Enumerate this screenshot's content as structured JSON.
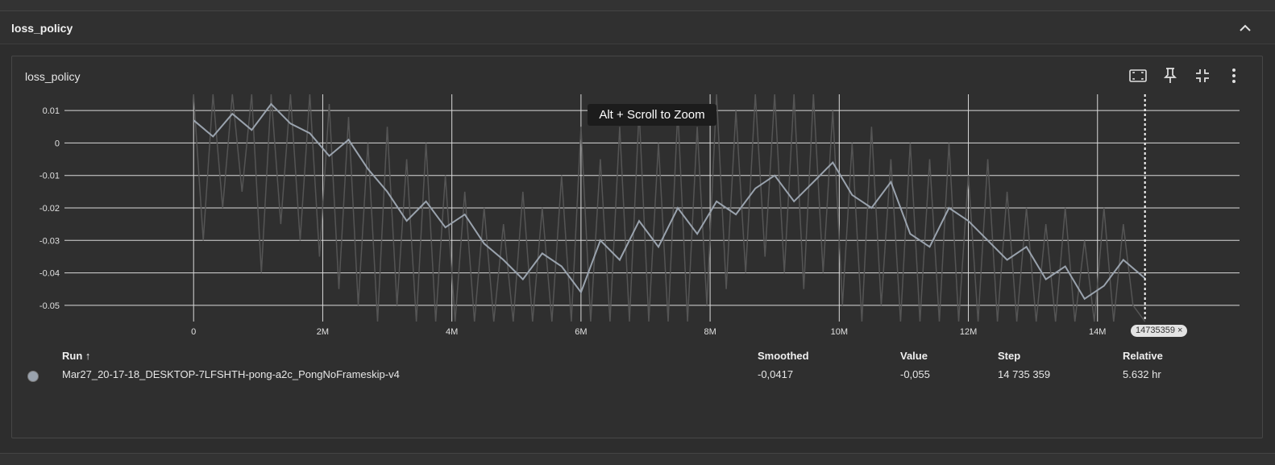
{
  "group": {
    "title": "loss_policy"
  },
  "card": {
    "title": "loss_policy",
    "tooltip": "Alt + Scroll to Zoom",
    "step_badge": "14735359 ×"
  },
  "toolbar": {
    "fit_icon": "fit-domain-icon",
    "pin_icon": "pin-icon",
    "fullscreen_icon": "collapse-fullscreen-icon",
    "more_icon": "more-vert-icon"
  },
  "table": {
    "headers": {
      "run": "Run ↑",
      "smoothed": "Smoothed",
      "value": "Value",
      "step": "Step",
      "relative": "Relative"
    },
    "rows": [
      {
        "run": "Mar27_20-17-18_DESKTOP-7LFSHTH-pong-a2c_PongNoFrameskip-v4",
        "smoothed": "-0,0417",
        "value": "-0,055",
        "step": "14 735 359",
        "relative": "5.632 hr",
        "color": "#9aa3ae"
      }
    ]
  },
  "colors": {
    "background": "#2d2d2d",
    "raw_line": "#555555",
    "smoothed_line": "#9aa3ae",
    "grid": "#d9d9d9"
  },
  "chart_data": {
    "type": "line",
    "ylim": [
      -0.055,
      0.015
    ],
    "xlim": [
      -2000000,
      16200000
    ],
    "x_ticks": [
      0,
      2000000,
      4000000,
      6000000,
      8000000,
      10000000,
      12000000,
      14000000
    ],
    "x_tick_labels": [
      "0",
      "2M",
      "4M",
      "6M",
      "8M",
      "10M",
      "12M",
      "14M"
    ],
    "y_ticks": [
      0.01,
      0,
      -0.01,
      -0.02,
      -0.03,
      -0.04,
      -0.05
    ],
    "y_tick_labels": [
      "0.01",
      "0",
      "-0.01",
      "-0.02",
      "-0.03",
      "-0.04",
      "-0.05"
    ],
    "cursor_step": 14735359,
    "series": [
      {
        "name": "Mar27_20-17-18_DESKTOP-7LFSHTH-pong-a2c_PongNoFrameskip-v4",
        "kind": "smoothed",
        "x": [
          0,
          300000,
          600000,
          900000,
          1200000,
          1500000,
          1800000,
          2100000,
          2400000,
          2700000,
          3000000,
          3300000,
          3600000,
          3900000,
          4200000,
          4500000,
          4800000,
          5100000,
          5400000,
          5700000,
          6000000,
          6300000,
          6600000,
          6900000,
          7200000,
          7500000,
          7800000,
          8100000,
          8400000,
          8700000,
          9000000,
          9300000,
          9600000,
          9900000,
          10200000,
          10500000,
          10800000,
          11100000,
          11400000,
          11700000,
          12000000,
          12300000,
          12600000,
          12900000,
          13200000,
          13500000,
          13800000,
          14100000,
          14400000,
          14735359
        ],
        "y": [
          0.007,
          0.002,
          0.009,
          0.004,
          0.012,
          0.006,
          0.003,
          -0.004,
          0.001,
          -0.008,
          -0.015,
          -0.024,
          -0.018,
          -0.026,
          -0.022,
          -0.031,
          -0.036,
          -0.042,
          -0.034,
          -0.038,
          -0.046,
          -0.03,
          -0.036,
          -0.024,
          -0.032,
          -0.02,
          -0.028,
          -0.018,
          -0.022,
          -0.014,
          -0.01,
          -0.018,
          -0.012,
          -0.006,
          -0.016,
          -0.02,
          -0.012,
          -0.028,
          -0.032,
          -0.02,
          -0.024,
          -0.03,
          -0.036,
          -0.032,
          -0.042,
          -0.038,
          -0.048,
          -0.044,
          -0.036,
          -0.0417
        ]
      },
      {
        "name": "Mar27_20-17-18_DESKTOP-7LFSHTH-pong-a2c_PongNoFrameskip-v4",
        "kind": "raw",
        "x": [
          0,
          150000,
          300000,
          450000,
          600000,
          750000,
          900000,
          1050000,
          1200000,
          1350000,
          1500000,
          1650000,
          1800000,
          1950000,
          2100000,
          2250000,
          2400000,
          2550000,
          2700000,
          2850000,
          3000000,
          3150000,
          3300000,
          3450000,
          3600000,
          3750000,
          3900000,
          4050000,
          4200000,
          4350000,
          4500000,
          4650000,
          4800000,
          4950000,
          5100000,
          5250000,
          5400000,
          5550000,
          5700000,
          5850000,
          6000000,
          6150000,
          6300000,
          6450000,
          6600000,
          6750000,
          6900000,
          7050000,
          7200000,
          7350000,
          7500000,
          7650000,
          7800000,
          7950000,
          8100000,
          8250000,
          8400000,
          8550000,
          8700000,
          8850000,
          9000000,
          9150000,
          9300000,
          9450000,
          9600000,
          9750000,
          9900000,
          10050000,
          10200000,
          10350000,
          10500000,
          10650000,
          10800000,
          10950000,
          11100000,
          11250000,
          11400000,
          11550000,
          11700000,
          11850000,
          12000000,
          12150000,
          12300000,
          12450000,
          12600000,
          12750000,
          12900000,
          13050000,
          13200000,
          13350000,
          13500000,
          13650000,
          13800000,
          13950000,
          14100000,
          14250000,
          14400000,
          14550000,
          14735359
        ],
        "y": [
          0.02,
          -0.03,
          0.015,
          -0.02,
          0.02,
          -0.015,
          0.018,
          -0.04,
          0.02,
          -0.025,
          0.015,
          -0.03,
          0.02,
          -0.035,
          0.012,
          -0.045,
          0.008,
          -0.05,
          0.0,
          -0.055,
          0.005,
          -0.05,
          -0.005,
          -0.055,
          0.0,
          -0.055,
          -0.01,
          -0.055,
          -0.015,
          -0.055,
          -0.02,
          -0.055,
          -0.025,
          -0.055,
          -0.015,
          -0.055,
          -0.02,
          -0.055,
          -0.01,
          -0.055,
          0.005,
          -0.055,
          -0.005,
          -0.055,
          0.005,
          -0.055,
          0.01,
          -0.055,
          0.0,
          -0.055,
          0.01,
          -0.055,
          0.005,
          -0.05,
          0.015,
          -0.045,
          0.01,
          -0.04,
          0.015,
          -0.035,
          0.02,
          -0.04,
          0.015,
          -0.045,
          0.02,
          -0.04,
          0.01,
          -0.05,
          0.0,
          -0.055,
          0.005,
          -0.05,
          -0.005,
          -0.055,
          0.0,
          -0.055,
          -0.005,
          -0.055,
          0.0,
          -0.055,
          -0.01,
          -0.055,
          -0.005,
          -0.055,
          -0.015,
          -0.055,
          -0.02,
          -0.055,
          -0.025,
          -0.055,
          -0.02,
          -0.055,
          -0.03,
          -0.055,
          -0.02,
          -0.055,
          -0.025,
          -0.05,
          -0.055
        ]
      }
    ]
  }
}
